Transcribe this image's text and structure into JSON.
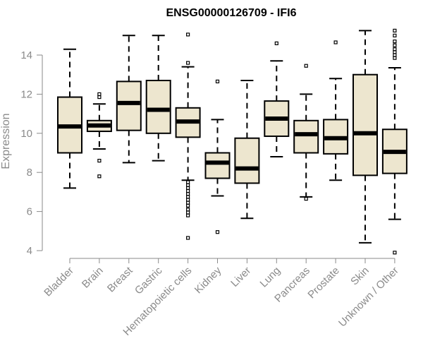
{
  "chart_data": {
    "type": "box",
    "title": "ENSG00000126709 - IFI6",
    "xlabel": "",
    "ylabel": "Expression",
    "ylim": [
      4,
      15.3
    ],
    "yticks": [
      4,
      6,
      8,
      10,
      12,
      14
    ],
    "grid": false,
    "categories": [
      "Bladder",
      "Brain",
      "Breast",
      "Gastric",
      "Hematopoietic cells",
      "Kidney",
      "Liver",
      "Lung",
      "Pancreas",
      "Prostate",
      "Skin",
      "Unknown / Other"
    ],
    "boxes": [
      {
        "name": "Bladder",
        "whisker_low": 7.2,
        "q1": 9.0,
        "median": 10.35,
        "q3": 11.85,
        "whisker_high": 14.3,
        "outliers": []
      },
      {
        "name": "Brain",
        "whisker_low": 9.2,
        "q1": 10.1,
        "median": 10.4,
        "q3": 10.65,
        "whisker_high": 11.5,
        "outliers": [
          7.8,
          8.6,
          11.85,
          12.0
        ]
      },
      {
        "name": "Breast",
        "whisker_low": 8.5,
        "q1": 10.15,
        "median": 11.55,
        "q3": 12.65,
        "whisker_high": 15.0,
        "outliers": []
      },
      {
        "name": "Gastric",
        "whisker_low": 8.6,
        "q1": 10.0,
        "median": 11.2,
        "q3": 12.7,
        "whisker_high": 15.0,
        "outliers": []
      },
      {
        "name": "Hematopoietic cells",
        "whisker_low": 7.6,
        "q1": 9.8,
        "median": 10.6,
        "q3": 11.3,
        "whisker_high": 13.4,
        "outliers": [
          4.65,
          5.8,
          5.95,
          6.1,
          6.3,
          6.45,
          6.6,
          6.75,
          6.9,
          7.05,
          7.2,
          7.35,
          7.5,
          13.6,
          15.05
        ]
      },
      {
        "name": "Kidney",
        "whisker_low": 6.8,
        "q1": 7.7,
        "median": 8.5,
        "q3": 9.0,
        "whisker_high": 10.7,
        "outliers": [
          4.95,
          12.65
        ]
      },
      {
        "name": "Liver",
        "whisker_low": 5.65,
        "q1": 7.45,
        "median": 8.2,
        "q3": 9.75,
        "whisker_high": 12.7,
        "outliers": []
      },
      {
        "name": "Lung",
        "whisker_low": 8.8,
        "q1": 9.85,
        "median": 10.75,
        "q3": 11.65,
        "whisker_high": 13.7,
        "outliers": [
          14.6
        ]
      },
      {
        "name": "Pancreas",
        "whisker_low": 6.75,
        "q1": 9.0,
        "median": 9.95,
        "q3": 10.65,
        "whisker_high": 12.0,
        "outliers": [
          6.65,
          13.45
        ]
      },
      {
        "name": "Prostate",
        "whisker_low": 7.6,
        "q1": 8.95,
        "median": 9.75,
        "q3": 10.7,
        "whisker_high": 12.8,
        "outliers": [
          14.65
        ]
      },
      {
        "name": "Skin",
        "whisker_low": 4.4,
        "q1": 7.85,
        "median": 10.0,
        "q3": 13.0,
        "whisker_high": 15.25,
        "outliers": []
      },
      {
        "name": "Unknown / Other",
        "whisker_low": 5.6,
        "q1": 7.95,
        "median": 9.05,
        "q3": 10.2,
        "whisker_high": 13.35,
        "outliers": [
          3.9,
          13.85,
          14.0,
          14.15,
          14.3,
          14.5,
          14.7,
          15.0,
          15.25
        ]
      }
    ]
  }
}
